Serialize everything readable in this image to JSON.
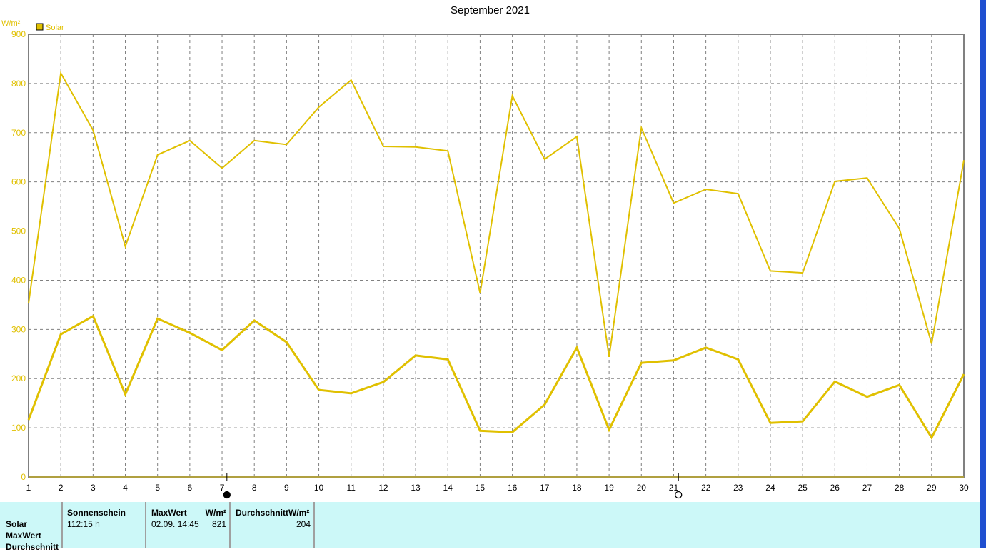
{
  "chart_data": {
    "type": "line",
    "title": "September 2021",
    "ylabel": "W/m²",
    "ylim": [
      0,
      900
    ],
    "yticks": [
      0,
      100,
      200,
      300,
      400,
      500,
      600,
      700,
      800,
      900
    ],
    "x": [
      1,
      2,
      3,
      4,
      5,
      6,
      7,
      8,
      9,
      10,
      11,
      12,
      13,
      14,
      15,
      16,
      17,
      18,
      19,
      20,
      21,
      22,
      23,
      24,
      25,
      26,
      27,
      28,
      29,
      30
    ],
    "grid": true,
    "legend": {
      "position": "top-left",
      "entries": [
        "Solar"
      ]
    },
    "series": [
      {
        "name": "Solar",
        "role": "max",
        "color": "#e0c000",
        "values": [
          353,
          821,
          705,
          469,
          655,
          684,
          628,
          684,
          676,
          752,
          807,
          672,
          671,
          663,
          374,
          775,
          646,
          692,
          244,
          710,
          557,
          585,
          576,
          419,
          415,
          601,
          608,
          505,
          271,
          644
        ]
      },
      {
        "name": "Solar",
        "role": "average",
        "color": "#e0c000",
        "values": [
          116,
          290,
          327,
          168,
          322,
          293,
          258,
          318,
          274,
          177,
          170,
          193,
          247,
          239,
          94,
          91,
          147,
          263,
          96,
          232,
          237,
          263,
          239,
          110,
          113,
          194,
          163,
          187,
          80,
          209
        ]
      }
    ],
    "moon_phases": [
      {
        "day": 7,
        "phase": "new-moon"
      },
      {
        "day": 21,
        "phase": "full-moon"
      }
    ]
  },
  "panel": {
    "row_labels": [
      "Solar",
      "MaxWert",
      "Durchschnitt"
    ],
    "sunshine_header": "Sonnenschein",
    "sunshine_value": "112:15 h",
    "max_header": "MaxWert",
    "max_unit": "W/m²",
    "max_time": "02.09.  14:45",
    "max_value": "821",
    "avg_header": "DurchschnittW/m²",
    "avg_value": "204"
  }
}
